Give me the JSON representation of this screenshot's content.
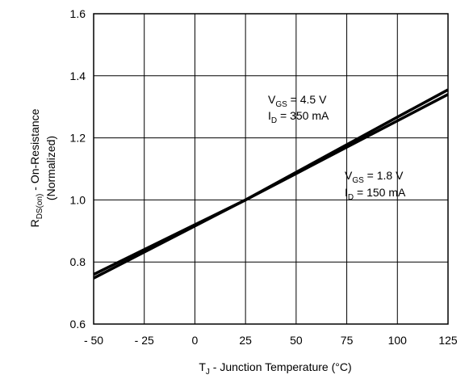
{
  "chart_data": {
    "type": "line",
    "title": "",
    "xlabel": {
      "main": "T",
      "sub": "J",
      "rest": " - Junction Temperature (°C)"
    },
    "ylabel": {
      "line1_main": "R",
      "line1_sub": "DS(on)",
      "line1_rest": " - On-Resistance",
      "line2": "(Normalized)"
    },
    "x_ticks": [
      -50,
      -25,
      0,
      25,
      50,
      75,
      100,
      125
    ],
    "x_tick_labels": [
      "- 50",
      "- 25",
      "0",
      "25",
      "50",
      "75",
      "100",
      "125"
    ],
    "y_ticks": [
      0.6,
      0.8,
      1.0,
      1.2,
      1.4,
      1.6
    ],
    "y_tick_labels": [
      "0.6",
      "0.8",
      "1.0",
      "1.2",
      "1.4",
      "1.6"
    ],
    "xlim": [
      -50,
      125
    ],
    "ylim": [
      0.6,
      1.6
    ],
    "grid": true,
    "series": [
      {
        "x": [
          -50,
          -25,
          0,
          25,
          50,
          75,
          100,
          125
        ],
        "y": [
          0.76,
          0.84,
          0.92,
          1.0,
          1.085,
          1.17,
          1.255,
          1.34
        ]
      },
      {
        "x": [
          -50,
          -25,
          0,
          25,
          50,
          75,
          100,
          125
        ],
        "y": [
          0.748,
          0.832,
          0.916,
          1.0,
          1.089,
          1.178,
          1.267,
          1.355
        ]
      }
    ],
    "annotations": [
      {
        "v_main": "V",
        "v_sub": "GS",
        "v_rest": " = 4.5 V",
        "i_main": "I",
        "i_sub": "D",
        "i_rest": " = 350 mA"
      },
      {
        "v_main": "V",
        "v_sub": "GS",
        "v_rest": " = 1.8 V",
        "i_main": "I",
        "i_sub": "D",
        "i_rest": " = 150 mA"
      }
    ]
  }
}
